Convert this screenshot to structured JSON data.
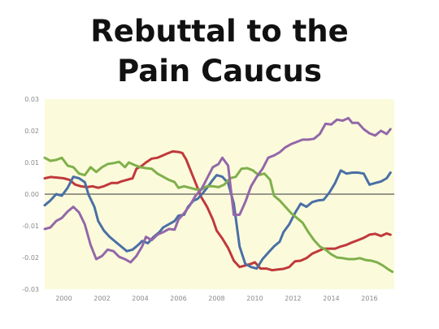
{
  "slide": {
    "title_line1": "Rebuttal to the",
    "title_line2": "Pain Caucus"
  },
  "chart_data": {
    "type": "line",
    "title": "",
    "xlabel": "",
    "ylabel": "",
    "xlim": [
      1999.0,
      2017.3
    ],
    "ylim": [
      -0.03,
      0.03
    ],
    "yticks": [
      0.03,
      0.02,
      0.01,
      0.0,
      -0.01,
      -0.02,
      -0.03
    ],
    "ytick_labels": [
      "0.03",
      "0.02",
      "0.01",
      "0.00",
      "-0.01",
      "-0.02",
      "-0.03"
    ],
    "xticks": [
      2000,
      2002,
      2004,
      2006,
      2008,
      2010,
      2012,
      2014,
      2016
    ],
    "xtick_labels": [
      "2000",
      "2002",
      "2004",
      "2006",
      "2008",
      "2010",
      "2012",
      "2014",
      "2016"
    ],
    "background_color": "#fbfbdc",
    "zero_line": true,
    "grid": false,
    "series": [
      {
        "color": "#c0393a",
        "points": [
          [
            1999.0,
            0.005
          ],
          [
            1999.3,
            0.0054
          ],
          [
            1999.7,
            0.0052
          ],
          [
            2000.0,
            0.005
          ],
          [
            2000.3,
            0.0045
          ],
          [
            2000.6,
            0.003
          ],
          [
            2000.9,
            0.0025
          ],
          [
            2001.2,
            0.0022
          ],
          [
            2001.5,
            0.0025
          ],
          [
            2001.8,
            0.002
          ],
          [
            2002.1,
            0.0025
          ],
          [
            2002.5,
            0.0035
          ],
          [
            2002.8,
            0.0035
          ],
          [
            2003.0,
            0.004
          ],
          [
            2003.3,
            0.0045
          ],
          [
            2003.6,
            0.005
          ],
          [
            2003.8,
            0.008
          ],
          [
            2004.1,
            0.009
          ],
          [
            2004.3,
            0.01
          ],
          [
            2004.6,
            0.0112
          ],
          [
            2004.9,
            0.0115
          ],
          [
            2005.1,
            0.012
          ],
          [
            2005.4,
            0.0128
          ],
          [
            2005.7,
            0.0135
          ],
          [
            2006.0,
            0.0133
          ],
          [
            2006.2,
            0.013
          ],
          [
            2006.4,
            0.011
          ],
          [
            2006.6,
            0.008
          ],
          [
            2006.8,
            0.005
          ],
          [
            2007.0,
            0.002
          ],
          [
            2007.2,
            -0.001
          ],
          [
            2007.5,
            -0.004
          ],
          [
            2007.8,
            -0.008
          ],
          [
            2008.0,
            -0.0115
          ],
          [
            2008.3,
            -0.014
          ],
          [
            2008.6,
            -0.017
          ],
          [
            2008.9,
            -0.021
          ],
          [
            2009.2,
            -0.023
          ],
          [
            2009.5,
            -0.0225
          ],
          [
            2009.8,
            -0.022
          ],
          [
            2010.0,
            -0.0215
          ],
          [
            2010.3,
            -0.0235
          ],
          [
            2010.6,
            -0.0235
          ],
          [
            2010.9,
            -0.024
          ],
          [
            2011.2,
            -0.0238
          ],
          [
            2011.5,
            -0.0236
          ],
          [
            2011.8,
            -0.023
          ],
          [
            2012.1,
            -0.0212
          ],
          [
            2012.4,
            -0.021
          ],
          [
            2012.7,
            -0.0202
          ],
          [
            2013.0,
            -0.0188
          ],
          [
            2013.3,
            -0.018
          ],
          [
            2013.6,
            -0.0172
          ],
          [
            2013.9,
            -0.0172
          ],
          [
            2014.2,
            -0.0172
          ],
          [
            2014.5,
            -0.0165
          ],
          [
            2014.8,
            -0.016
          ],
          [
            2015.1,
            -0.0152
          ],
          [
            2015.4,
            -0.0145
          ],
          [
            2015.7,
            -0.0138
          ],
          [
            2016.0,
            -0.0128
          ],
          [
            2016.3,
            -0.0125
          ],
          [
            2016.6,
            -0.0132
          ],
          [
            2016.9,
            -0.0124
          ],
          [
            2017.1,
            -0.0128
          ]
        ]
      },
      {
        "color": "#4a6fa5",
        "points": [
          [
            1999.0,
            -0.0035
          ],
          [
            1999.3,
            -0.002
          ],
          [
            1999.6,
            0.0
          ],
          [
            1999.9,
            -0.0005
          ],
          [
            2000.2,
            0.002
          ],
          [
            2000.5,
            0.0055
          ],
          [
            2000.8,
            0.005
          ],
          [
            2001.1,
            0.0038
          ],
          [
            2001.3,
            -0.0002
          ],
          [
            2001.6,
            -0.004
          ],
          [
            2001.8,
            -0.0085
          ],
          [
            2002.1,
            -0.0115
          ],
          [
            2002.4,
            -0.0135
          ],
          [
            2002.7,
            -0.015
          ],
          [
            2003.0,
            -0.0165
          ],
          [
            2003.3,
            -0.018
          ],
          [
            2003.6,
            -0.0175
          ],
          [
            2003.9,
            -0.016
          ],
          [
            2004.1,
            -0.0148
          ],
          [
            2004.4,
            -0.0155
          ],
          [
            2004.7,
            -0.0135
          ],
          [
            2005.0,
            -0.012
          ],
          [
            2005.2,
            -0.0105
          ],
          [
            2005.5,
            -0.0095
          ],
          [
            2005.8,
            -0.0085
          ],
          [
            2006.0,
            -0.0068
          ],
          [
            2006.3,
            -0.0065
          ],
          [
            2006.5,
            -0.004
          ],
          [
            2006.8,
            -0.002
          ],
          [
            2007.0,
            -0.0015
          ],
          [
            2007.3,
            0.0005
          ],
          [
            2007.5,
            0.002
          ],
          [
            2007.8,
            0.0045
          ],
          [
            2008.0,
            0.006
          ],
          [
            2008.3,
            0.0055
          ],
          [
            2008.6,
            0.0035
          ],
          [
            2008.9,
            -0.003
          ],
          [
            2009.2,
            -0.0165
          ],
          [
            2009.5,
            -0.022
          ],
          [
            2009.8,
            -0.023
          ],
          [
            2010.1,
            -0.0235
          ],
          [
            2010.4,
            -0.0205
          ],
          [
            2010.7,
            -0.0185
          ],
          [
            2011.0,
            -0.0165
          ],
          [
            2011.3,
            -0.015
          ],
          [
            2011.5,
            -0.012
          ],
          [
            2011.8,
            -0.0095
          ],
          [
            2012.1,
            -0.006
          ],
          [
            2012.4,
            -0.003
          ],
          [
            2012.7,
            -0.004
          ],
          [
            2013.0,
            -0.0025
          ],
          [
            2013.3,
            -0.002
          ],
          [
            2013.6,
            -0.0018
          ],
          [
            2013.9,
            0.0005
          ],
          [
            2014.2,
            0.0035
          ],
          [
            2014.5,
            0.0075
          ],
          [
            2014.8,
            0.0065
          ],
          [
            2015.1,
            0.0068
          ],
          [
            2015.4,
            0.0068
          ],
          [
            2015.7,
            0.0065
          ],
          [
            2016.0,
            0.003
          ],
          [
            2016.3,
            0.0035
          ],
          [
            2016.6,
            0.004
          ],
          [
            2016.9,
            0.005
          ],
          [
            2017.1,
            0.0068
          ]
        ]
      },
      {
        "color": "#7fb04a",
        "points": [
          [
            1999.0,
            0.0115
          ],
          [
            1999.3,
            0.0105
          ],
          [
            1999.6,
            0.0108
          ],
          [
            1999.9,
            0.0115
          ],
          [
            2000.2,
            0.009
          ],
          [
            2000.5,
            0.0085
          ],
          [
            2000.8,
            0.0065
          ],
          [
            2001.1,
            0.006
          ],
          [
            2001.4,
            0.0085
          ],
          [
            2001.7,
            0.007
          ],
          [
            2002.0,
            0.0085
          ],
          [
            2002.3,
            0.0095
          ],
          [
            2002.6,
            0.0098
          ],
          [
            2002.9,
            0.0102
          ],
          [
            2003.2,
            0.0085
          ],
          [
            2003.4,
            0.01
          ],
          [
            2003.7,
            0.0092
          ],
          [
            2004.0,
            0.0085
          ],
          [
            2004.3,
            0.0082
          ],
          [
            2004.6,
            0.008
          ],
          [
            2004.9,
            0.0065
          ],
          [
            2005.2,
            0.0055
          ],
          [
            2005.5,
            0.0045
          ],
          [
            2005.8,
            0.0038
          ],
          [
            2006.0,
            0.002
          ],
          [
            2006.3,
            0.0025
          ],
          [
            2006.6,
            0.002
          ],
          [
            2006.9,
            0.0015
          ],
          [
            2007.2,
            0.0015
          ],
          [
            2007.5,
            0.0025
          ],
          [
            2007.8,
            0.0025
          ],
          [
            2008.1,
            0.0022
          ],
          [
            2008.4,
            0.003
          ],
          [
            2008.7,
            0.005
          ],
          [
            2009.0,
            0.0055
          ],
          [
            2009.3,
            0.008
          ],
          [
            2009.6,
            0.0082
          ],
          [
            2009.9,
            0.0075
          ],
          [
            2010.2,
            0.006
          ],
          [
            2010.5,
            0.0065
          ],
          [
            2010.8,
            0.0045
          ],
          [
            2011.0,
            -0.0005
          ],
          [
            2011.3,
            -0.002
          ],
          [
            2011.6,
            -0.004
          ],
          [
            2011.9,
            -0.006
          ],
          [
            2012.2,
            -0.0075
          ],
          [
            2012.5,
            -0.009
          ],
          [
            2012.8,
            -0.012
          ],
          [
            2013.1,
            -0.0145
          ],
          [
            2013.4,
            -0.0165
          ],
          [
            2013.7,
            -0.0175
          ],
          [
            2014.0,
            -0.019
          ],
          [
            2014.3,
            -0.02
          ],
          [
            2014.6,
            -0.0202
          ],
          [
            2014.9,
            -0.0205
          ],
          [
            2015.2,
            -0.0205
          ],
          [
            2015.5,
            -0.0202
          ],
          [
            2015.8,
            -0.0208
          ],
          [
            2016.1,
            -0.021
          ],
          [
            2016.4,
            -0.0215
          ],
          [
            2016.7,
            -0.0225
          ],
          [
            2017.0,
            -0.0238
          ],
          [
            2017.2,
            -0.0245
          ]
        ]
      },
      {
        "color": "#9467a8",
        "points": [
          [
            1999.0,
            -0.011
          ],
          [
            1999.3,
            -0.0105
          ],
          [
            1999.6,
            -0.0085
          ],
          [
            1999.9,
            -0.0075
          ],
          [
            2000.2,
            -0.0055
          ],
          [
            2000.5,
            -0.004
          ],
          [
            2000.8,
            -0.0058
          ],
          [
            2001.1,
            -0.0095
          ],
          [
            2001.4,
            -0.016
          ],
          [
            2001.7,
            -0.0205
          ],
          [
            2002.0,
            -0.0195
          ],
          [
            2002.3,
            -0.0175
          ],
          [
            2002.6,
            -0.018
          ],
          [
            2002.9,
            -0.0198
          ],
          [
            2003.2,
            -0.0205
          ],
          [
            2003.5,
            -0.0215
          ],
          [
            2003.8,
            -0.0195
          ],
          [
            2004.1,
            -0.0165
          ],
          [
            2004.3,
            -0.0135
          ],
          [
            2004.6,
            -0.0145
          ],
          [
            2004.9,
            -0.0128
          ],
          [
            2005.2,
            -0.012
          ],
          [
            2005.5,
            -0.011
          ],
          [
            2005.8,
            -0.0112
          ],
          [
            2006.0,
            -0.008
          ],
          [
            2006.3,
            -0.006
          ],
          [
            2006.6,
            -0.0035
          ],
          [
            2006.9,
            -0.0005
          ],
          [
            2007.2,
            0.0015
          ],
          [
            2007.5,
            0.005
          ],
          [
            2007.8,
            0.0085
          ],
          [
            2008.1,
            0.0095
          ],
          [
            2008.3,
            0.0115
          ],
          [
            2008.6,
            0.009
          ],
          [
            2008.9,
            -0.0065
          ],
          [
            2009.2,
            -0.0065
          ],
          [
            2009.5,
            -0.0025
          ],
          [
            2009.8,
            0.0025
          ],
          [
            2010.1,
            0.0055
          ],
          [
            2010.4,
            0.008
          ],
          [
            2010.7,
            0.0115
          ],
          [
            2011.0,
            0.0122
          ],
          [
            2011.3,
            0.0132
          ],
          [
            2011.6,
            0.0148
          ],
          [
            2011.9,
            0.0158
          ],
          [
            2012.2,
            0.0165
          ],
          [
            2012.5,
            0.0172
          ],
          [
            2012.8,
            0.0172
          ],
          [
            2013.1,
            0.0175
          ],
          [
            2013.4,
            0.019
          ],
          [
            2013.7,
            0.0222
          ],
          [
            2014.0,
            0.022
          ],
          [
            2014.3,
            0.0235
          ],
          [
            2014.6,
            0.0232
          ],
          [
            2014.9,
            0.024
          ],
          [
            2015.1,
            0.0225
          ],
          [
            2015.4,
            0.0225
          ],
          [
            2015.7,
            0.0205
          ],
          [
            2016.0,
            0.0192
          ],
          [
            2016.3,
            0.0185
          ],
          [
            2016.6,
            0.02
          ],
          [
            2016.9,
            0.019
          ],
          [
            2017.1,
            0.0205
          ]
        ]
      }
    ]
  }
}
